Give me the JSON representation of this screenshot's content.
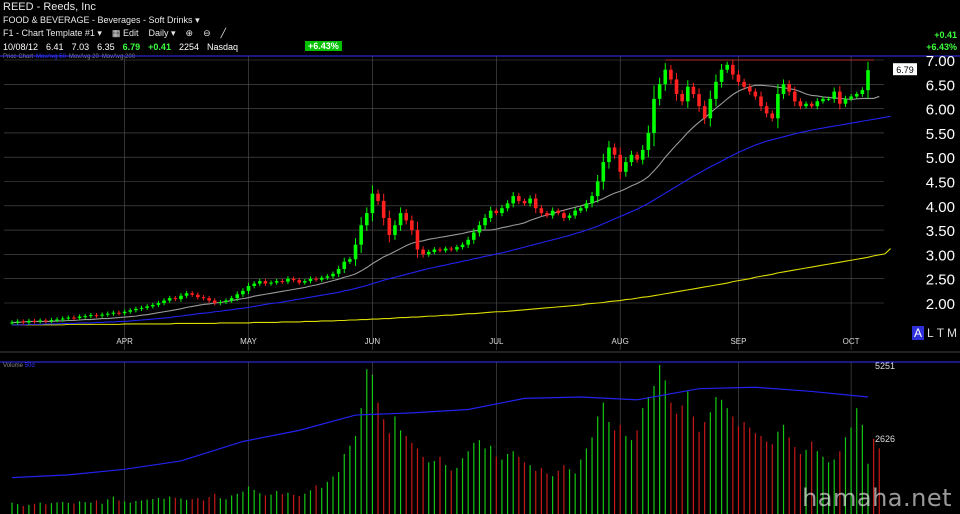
{
  "header": {
    "ticker": "REED - Reeds, Inc",
    "sector": "FOOD & BEVERAGE - Beverages - Soft Drinks",
    "template_label": "F1 - Chart Template #1",
    "edit_label": "Edit",
    "period_label": "Daily",
    "quote": {
      "date": "10/08/12",
      "open": "6.41",
      "high": "7.03",
      "low": "6.35",
      "close": "6.79",
      "change": "+0.41",
      "volume": "2254",
      "exchange": "Nasdaq"
    },
    "pct_badge": "+6.43%",
    "right_change": "+0.41",
    "right_pct": "+6.43%"
  },
  "legend": {
    "price_chart": "Price Chart",
    "ma_label_1": "MovAvg 50",
    "ma_label_2": "MovAvg 20",
    "ma_label_3": "MovAvg 200"
  },
  "volume_legend": {
    "label": "Volume",
    "ma": "50d"
  },
  "alt_buttons": [
    "A",
    "L",
    "T",
    "M",
    "L"
  ],
  "watermark": "hamaha.net",
  "colors": {
    "up": "#00ff00",
    "down": "#ff2020",
    "ma20": "#9a9a9a",
    "ma50": "#2222ee",
    "ma200": "#dddd00",
    "grid": "#555555",
    "volume_ma": "#2222ee"
  },
  "chart_data": [
    {
      "type": "candlestick",
      "title": "REED - Reeds, Inc",
      "interval": "Daily",
      "y_ticks": [
        "2.00",
        "2.50",
        "3.00",
        "3.50",
        "4.00",
        "4.50",
        "5.00",
        "5.50",
        "6.00",
        "6.50",
        "7.00"
      ],
      "ylim": [
        1.5,
        7.1
      ],
      "x_ticks": [
        "APR",
        "MAY",
        "JUN",
        "JUL",
        "AUG",
        "SEP",
        "OCT"
      ],
      "last_price_label": "6.79",
      "x_tick_index": [
        20,
        42,
        64,
        86,
        108,
        129,
        149
      ],
      "x_count": 157,
      "close": [
        1.6,
        1.62,
        1.6,
        1.63,
        1.62,
        1.64,
        1.63,
        1.65,
        1.66,
        1.68,
        1.7,
        1.69,
        1.72,
        1.73,
        1.75,
        1.74,
        1.76,
        1.78,
        1.8,
        1.79,
        1.82,
        1.85,
        1.88,
        1.9,
        1.93,
        1.96,
        2,
        2.05,
        2.1,
        2.08,
        2.15,
        2.2,
        2.17,
        2.12,
        2.1,
        2.05,
        2,
        2.02,
        2.05,
        2.1,
        2.18,
        2.25,
        2.35,
        2.4,
        2.45,
        2.4,
        2.42,
        2.45,
        2.44,
        2.5,
        2.47,
        2.42,
        2.45,
        2.5,
        2.48,
        2.52,
        2.55,
        2.6,
        2.7,
        2.85,
        2.9,
        3.2,
        3.6,
        3.85,
        4.25,
        4.1,
        3.75,
        3.4,
        3.6,
        3.85,
        3.7,
        3.5,
        3.1,
        3,
        3.05,
        3.1,
        3.08,
        3.12,
        3.1,
        3.15,
        3.2,
        3.3,
        3.45,
        3.6,
        3.75,
        3.9,
        3.85,
        3.95,
        4.05,
        4.2,
        4.1,
        4.05,
        4.15,
        3.95,
        3.85,
        3.8,
        3.9,
        3.85,
        3.75,
        3.8,
        3.9,
        3.95,
        4.05,
        4.2,
        4.5,
        4.9,
        5.2,
        5.05,
        4.7,
        4.9,
        5.05,
        4.95,
        5.15,
        5.5,
        6.2,
        6.5,
        6.8,
        6.6,
        6.3,
        6.15,
        6.45,
        6.3,
        6.05,
        5.8,
        6.2,
        6.55,
        6.8,
        6.9,
        6.7,
        6.55,
        6.45,
        6.35,
        6.25,
        6.05,
        5.9,
        5.8,
        6.3,
        6.5,
        6.35,
        6.15,
        6.05,
        6.1,
        6.05,
        6.15,
        6.2,
        6.2,
        6.35,
        6.1,
        6.2,
        6.25,
        6.3,
        6.38,
        6.79
      ],
      "ma20": [
        1.6,
        1.6,
        1.61,
        1.62,
        1.62,
        1.62,
        1.62,
        1.62,
        1.63,
        1.63,
        1.64,
        1.64,
        1.65,
        1.66,
        1.66,
        1.67,
        1.68,
        1.68,
        1.69,
        1.7,
        1.71,
        1.72,
        1.73,
        1.75,
        1.76,
        1.78,
        1.8,
        1.82,
        1.84,
        1.86,
        1.88,
        1.91,
        1.93,
        1.95,
        1.97,
        1.98,
        2,
        2.01,
        2.03,
        2.05,
        2.07,
        2.09,
        2.11,
        2.14,
        2.16,
        2.18,
        2.2,
        2.22,
        2.24,
        2.26,
        2.28,
        2.3,
        2.32,
        2.35,
        2.37,
        2.4,
        2.43,
        2.46,
        2.49,
        2.53,
        2.56,
        2.6,
        2.66,
        2.73,
        2.81,
        2.88,
        2.95,
        3,
        3.06,
        3.12,
        3.18,
        3.23,
        3.26,
        3.28,
        3.31,
        3.33,
        3.35,
        3.37,
        3.39,
        3.41,
        3.43,
        3.46,
        3.48,
        3.5,
        3.5,
        3.5,
        3.52,
        3.55,
        3.57,
        3.6,
        3.62,
        3.65,
        3.7,
        3.74,
        3.78,
        3.81,
        3.84,
        3.88,
        3.91,
        3.94,
        3.97,
        4,
        4.03,
        4.06,
        4.1,
        4.15,
        4.21,
        4.26,
        4.3,
        4.35,
        4.41,
        4.46,
        4.52,
        4.6,
        4.72,
        4.85,
        5,
        5.13,
        5.26,
        5.38,
        5.51,
        5.62,
        5.72,
        5.81,
        5.91,
        6.01,
        6.1,
        6.2,
        6.29,
        6.36,
        6.41,
        6.45,
        6.48,
        6.48,
        6.47,
        6.46,
        6.44,
        6.43,
        6.41,
        6.39,
        6.35,
        6.3,
        6.27,
        6.26,
        6.24,
        6.23,
        6.22,
        6.21,
        6.2,
        6.19,
        6.2,
        6.21,
        6.21,
        6.21,
        6.25
      ],
      "ma50": [
        1.55,
        1.55,
        1.55,
        1.56,
        1.56,
        1.56,
        1.57,
        1.57,
        1.57,
        1.58,
        1.58,
        1.58,
        1.59,
        1.59,
        1.59,
        1.6,
        1.6,
        1.61,
        1.61,
        1.62,
        1.62,
        1.63,
        1.64,
        1.65,
        1.66,
        1.67,
        1.68,
        1.69,
        1.7,
        1.72,
        1.73,
        1.75,
        1.76,
        1.78,
        1.79,
        1.8,
        1.82,
        1.83,
        1.85,
        1.86,
        1.88,
        1.89,
        1.91,
        1.93,
        1.95,
        1.97,
        1.99,
        2,
        2.02,
        2.04,
        2.06,
        2.08,
        2.1,
        2.12,
        2.14,
        2.16,
        2.18,
        2.2,
        2.22,
        2.25,
        2.27,
        2.3,
        2.33,
        2.36,
        2.4,
        2.43,
        2.47,
        2.5,
        2.53,
        2.56,
        2.59,
        2.62,
        2.65,
        2.68,
        2.71,
        2.73,
        2.76,
        2.78,
        2.81,
        2.83,
        2.86,
        2.88,
        2.91,
        2.93,
        2.96,
        2.98,
        3.01,
        3.03,
        3.06,
        3.09,
        3.12,
        3.15,
        3.18,
        3.21,
        3.24,
        3.27,
        3.3,
        3.33,
        3.36,
        3.39,
        3.43,
        3.46,
        3.5,
        3.54,
        3.58,
        3.63,
        3.68,
        3.73,
        3.78,
        3.83,
        3.88,
        3.93,
        3.99,
        4.05,
        4.12,
        4.19,
        4.26,
        4.33,
        4.4,
        4.47,
        4.54,
        4.61,
        4.67,
        4.74,
        4.8,
        4.86,
        4.92,
        4.98,
        5.04,
        5.1,
        5.15,
        5.2,
        5.25,
        5.29,
        5.33,
        5.36,
        5.39,
        5.42,
        5.45,
        5.48,
        5.51,
        5.53,
        5.56,
        5.58,
        5.6,
        5.62,
        5.64,
        5.66,
        5.68,
        5.7,
        5.72,
        5.74,
        5.76,
        5.78,
        5.8,
        5.82,
        5.84
      ],
      "ma200": [
        1.55,
        1.55,
        1.55,
        1.55,
        1.55,
        1.55,
        1.55,
        1.55,
        1.55,
        1.55,
        1.56,
        1.56,
        1.56,
        1.56,
        1.56,
        1.56,
        1.56,
        1.56,
        1.56,
        1.56,
        1.57,
        1.57,
        1.57,
        1.57,
        1.57,
        1.57,
        1.57,
        1.57,
        1.57,
        1.58,
        1.58,
        1.58,
        1.58,
        1.58,
        1.58,
        1.58,
        1.58,
        1.59,
        1.59,
        1.59,
        1.59,
        1.59,
        1.59,
        1.6,
        1.6,
        1.6,
        1.6,
        1.6,
        1.61,
        1.61,
        1.61,
        1.61,
        1.62,
        1.62,
        1.62,
        1.63,
        1.63,
        1.63,
        1.64,
        1.64,
        1.65,
        1.65,
        1.66,
        1.66,
        1.67,
        1.67,
        1.68,
        1.68,
        1.69,
        1.7,
        1.7,
        1.71,
        1.71,
        1.72,
        1.73,
        1.73,
        1.74,
        1.75,
        1.75,
        1.76,
        1.77,
        1.78,
        1.78,
        1.79,
        1.8,
        1.81,
        1.82,
        1.82,
        1.83,
        1.84,
        1.85,
        1.86,
        1.87,
        1.88,
        1.89,
        1.9,
        1.91,
        1.92,
        1.93,
        1.94,
        1.95,
        1.96,
        1.98,
        1.99,
        2,
        2.01,
        2.03,
        2.04,
        2.05,
        2.07,
        2.08,
        2.1,
        2.12,
        2.13,
        2.15,
        2.17,
        2.19,
        2.21,
        2.23,
        2.25,
        2.27,
        2.29,
        2.31,
        2.33,
        2.35,
        2.37,
        2.39,
        2.41,
        2.44,
        2.46,
        2.48,
        2.5,
        2.53,
        2.55,
        2.57,
        2.59,
        2.62,
        2.64,
        2.66,
        2.68,
        2.7,
        2.72,
        2.74,
        2.76,
        2.78,
        2.8,
        2.82,
        2.84,
        2.86,
        2.88,
        2.9,
        2.92,
        2.94,
        2.97,
        2.99,
        3.01,
        3.12
      ],
      "resistance_line": 7
    },
    {
      "type": "bar",
      "title": "Volume",
      "y_ticks": [
        "5251",
        "2626"
      ],
      "ylim": [
        0,
        5251
      ],
      "volume": [
        300,
        250,
        180,
        220,
        260,
        300,
        240,
        280,
        310,
        330,
        290,
        270,
        350,
        320,
        300,
        380,
        260,
        420,
        520,
        380,
        340,
        300,
        360,
        380,
        410,
        430,
        470,
        440,
        520,
        480,
        450,
        400,
        430,
        460,
        380,
        500,
        620,
        460,
        420,
        560,
        620,
        700,
        880,
        760,
        640,
        560,
        590,
        720,
        610,
        660,
        580,
        540,
        620,
        740,
        920,
        830,
        1050,
        1240,
        1400,
        2050,
        2350,
        2700,
        3700,
        5100,
        4900,
        3900,
        3300,
        2800,
        3400,
        2900,
        2700,
        2450,
        2250,
        1950,
        1750,
        1800,
        1950,
        1650,
        1450,
        1550,
        1900,
        2150,
        2450,
        2550,
        2250,
        2350,
        1950,
        1850,
        2050,
        2150,
        1950,
        1750,
        1650,
        1450,
        1550,
        1350,
        1250,
        1450,
        1650,
        1500,
        1350,
        1850,
        2250,
        2650,
        3400,
        3900,
        3200,
        2900,
        3100,
        2700,
        2550,
        2900,
        3700,
        4100,
        4500,
        5251,
        4700,
        3900,
        3500,
        3800,
        4300,
        3400,
        2850,
        3200,
        3550,
        4100,
        4000,
        3700,
        3400,
        3050,
        3200,
        3000,
        2800,
        2700,
        2500,
        2400,
        2850,
        3100,
        2650,
        2300,
        2050,
        2200,
        2500,
        2150,
        1950,
        1750,
        1850,
        2150,
        2650,
        3000,
        3700,
        3100,
        1700,
        2600,
        2254
      ],
      "volume_ma": [
        1200,
        1300,
        1500,
        1800,
        2500,
        2900,
        3450,
        3530,
        3650,
        4050,
        4100,
        4000,
        4400,
        4450,
        4300,
        4100
      ]
    }
  ]
}
